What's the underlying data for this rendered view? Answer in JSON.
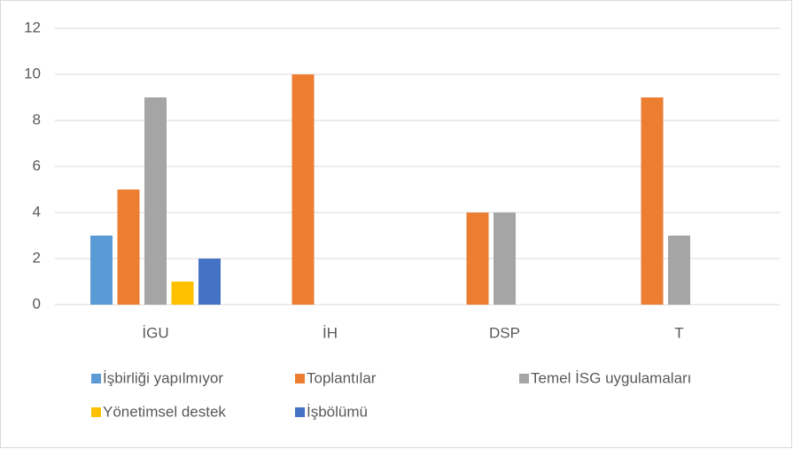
{
  "chart_data": {
    "type": "bar",
    "categories": [
      "İGU",
      "İH",
      "DSP",
      "T"
    ],
    "series": [
      {
        "name": "İşbirliği yapılmıyor",
        "color": "#5b9bd5",
        "values": [
          3,
          0,
          0,
          0
        ]
      },
      {
        "name": "Toplantılar",
        "color": "#ed7d31",
        "values": [
          5,
          10,
          4,
          9
        ]
      },
      {
        "name": "Temel İSG uygulamaları",
        "color": "#a5a5a5",
        "values": [
          9,
          0,
          4,
          3
        ]
      },
      {
        "name": "Yönetimsel destek",
        "color": "#ffc000",
        "values": [
          1,
          0,
          0,
          0
        ]
      },
      {
        "name": "İşbölümü",
        "color": "#4472c4",
        "values": [
          2,
          0,
          0,
          0
        ]
      }
    ],
    "ylim": [
      0,
      12
    ],
    "yticks": [
      0,
      2,
      4,
      6,
      8,
      10,
      12
    ],
    "grid": true,
    "legend": "bottom"
  }
}
